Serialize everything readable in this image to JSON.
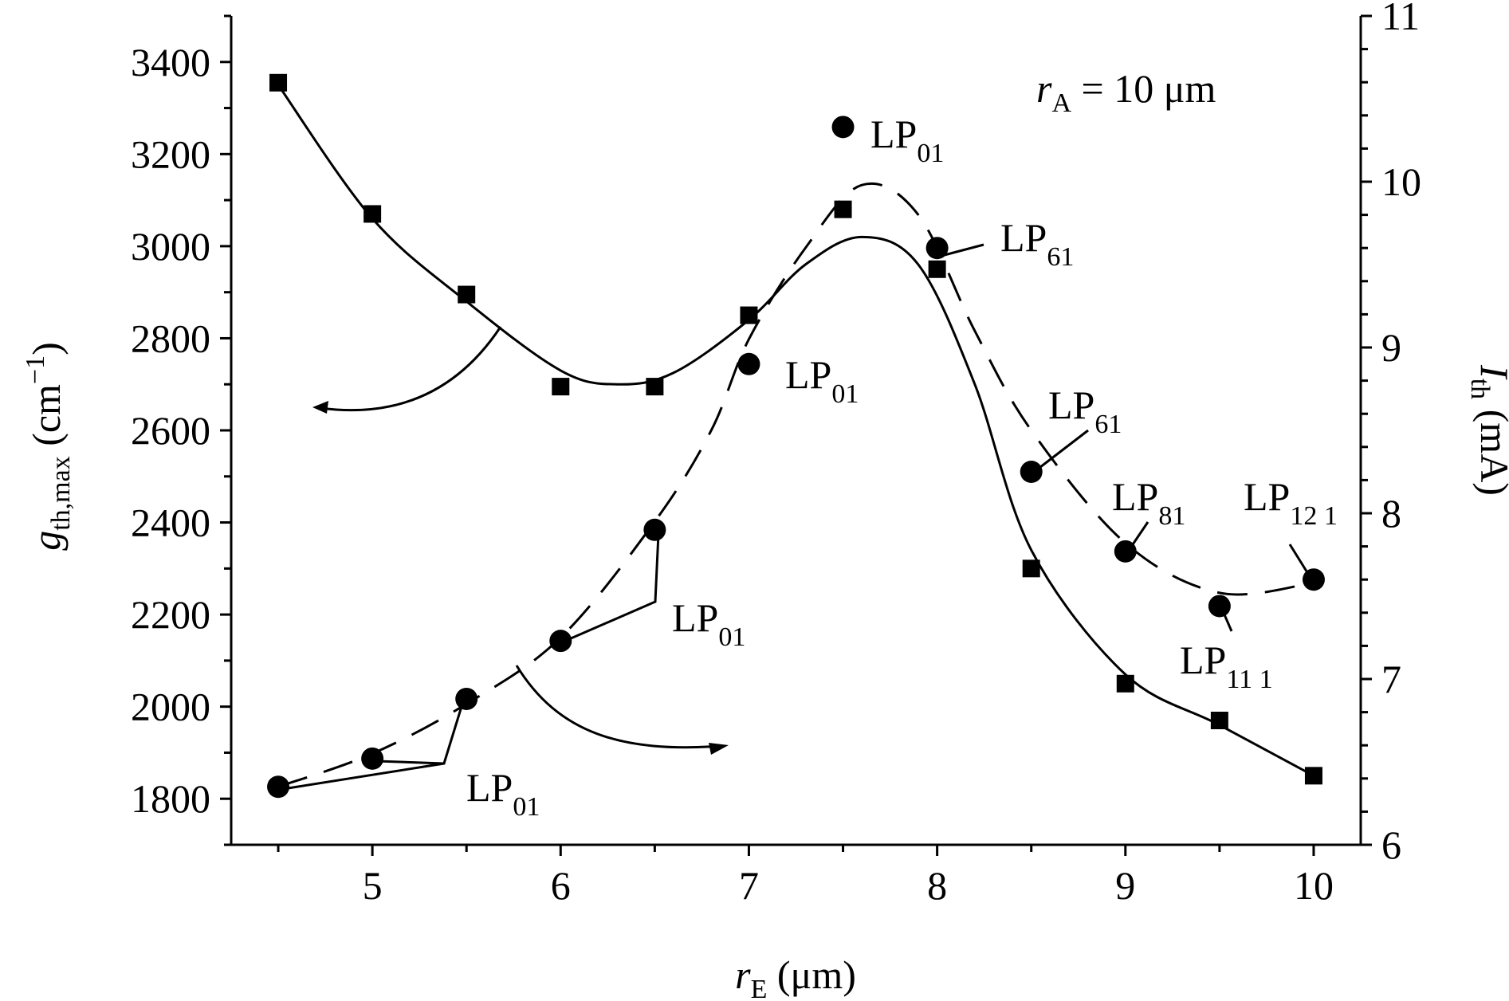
{
  "chart_data": {
    "type": "scatter",
    "title": "",
    "x_axis": {
      "label_main": "r",
      "label_sub": "E",
      "label_unit": " (μm)",
      "range": [
        4.25,
        10.25
      ],
      "ticks": [
        5,
        6,
        7,
        8,
        9,
        10
      ],
      "minor_ticks": [
        4.5,
        5.5,
        6.5,
        7.5,
        8.5,
        9.5
      ]
    },
    "y_axis_left": {
      "label_main": "g",
      "label_sub": "th,max",
      "label_unit_pre": " (cm",
      "label_unit_sup": "−1",
      "label_unit_post": ")",
      "range": [
        1700,
        3500
      ],
      "ticks": [
        1800,
        2000,
        2200,
        2400,
        2600,
        2800,
        3000,
        3200,
        3400
      ]
    },
    "y_axis_right": {
      "label_main": "I",
      "label_sub": "th",
      "label_unit": " (mA)",
      "range": [
        6,
        11
      ],
      "ticks": [
        6,
        7,
        8,
        9,
        10,
        11
      ]
    },
    "grid": false,
    "series": [
      {
        "marker": "square",
        "axis": "left",
        "x": [
          4.5,
          5.0,
          5.5,
          6.0,
          6.5,
          7.0,
          7.5,
          8.0,
          8.5,
          9.0,
          9.5,
          10.0
        ],
        "y": [
          3355,
          3070,
          2895,
          2695,
          2695,
          2850,
          3080,
          2950,
          2300,
          2050,
          1970,
          1850
        ],
        "fit_line": "solid"
      },
      {
        "marker": "circle",
        "axis": "right",
        "x": [
          4.5,
          5.0,
          5.5,
          6.0,
          6.5,
          7.0,
          7.5,
          8.0,
          8.5,
          9.0,
          9.5,
          10.0
        ],
        "y": [
          6.35,
          6.52,
          6.88,
          7.23,
          7.9,
          8.9,
          10.33,
          9.6,
          8.25,
          7.77,
          7.44,
          7.6
        ],
        "fit_line": "dashed"
      }
    ],
    "annotations": {
      "ra": {
        "main": "r",
        "sub": "A",
        "rest": " = 10 μm"
      },
      "labels": [
        {
          "main": "LP",
          "sub": "01"
        },
        {
          "main": "LP",
          "sub": "61"
        },
        {
          "main": "LP",
          "sub": "01"
        },
        {
          "main": "LP",
          "sub": "61"
        },
        {
          "main": "LP",
          "sub": "81"
        },
        {
          "main": "LP",
          "sub": "12 1"
        },
        {
          "main": "LP",
          "sub": "11 1"
        },
        {
          "main": "LP",
          "sub": "01"
        },
        {
          "main": "LP",
          "sub": "01"
        }
      ]
    }
  }
}
